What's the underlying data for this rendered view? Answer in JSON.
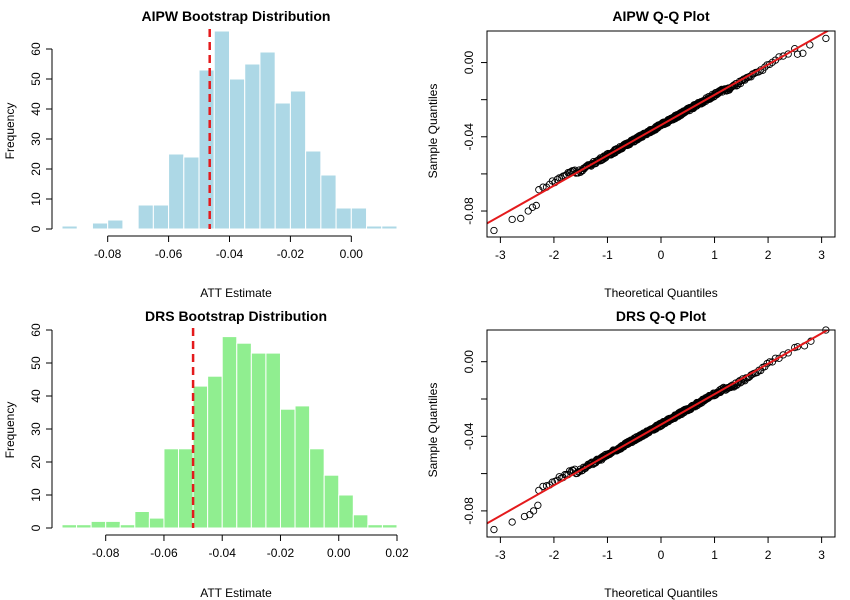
{
  "chart_data": [
    {
      "id": "aipw-hist",
      "type": "bar",
      "title": "AIPW Bootstrap Distribution",
      "xlabel": "ATT Estimate",
      "ylabel": "Frequency",
      "xlim": [
        -0.095,
        0.015
      ],
      "ylim": [
        0,
        66
      ],
      "xticks": [
        -0.08,
        -0.06,
        -0.04,
        -0.02,
        0.0
      ],
      "xtick_labels": [
        "-0.08",
        "-0.06",
        "-0.04",
        "-0.02",
        "0.00"
      ],
      "yticks": [
        0,
        10,
        20,
        30,
        40,
        50,
        60
      ],
      "ytick_labels": [
        "0",
        "10",
        "20",
        "30",
        "40",
        "50",
        "60"
      ],
      "bin_width": 0.005,
      "bin_starts": [
        -0.095,
        -0.09,
        -0.085,
        -0.08,
        -0.075,
        -0.07,
        -0.065,
        -0.06,
        -0.055,
        -0.05,
        -0.045,
        -0.04,
        -0.035,
        -0.03,
        -0.025,
        -0.02,
        -0.015,
        -0.01,
        -0.005,
        0.0,
        0.005,
        0.01
      ],
      "values": [
        1,
        0,
        2,
        3,
        0,
        8,
        8,
        25,
        24,
        53,
        66,
        50,
        55,
        59,
        42,
        46,
        26,
        18,
        7,
        7,
        1,
        1
      ],
      "bar_color": "#ADD8E6",
      "vline": -0.0465,
      "vline_color": "#E41A1C"
    },
    {
      "id": "aipw-qq",
      "type": "scatter",
      "title": "AIPW Q-Q Plot",
      "xlabel": "Theoretical Quantiles",
      "ylabel": "Sample Quantiles",
      "xlim": [
        -3.25,
        3.25
      ],
      "ylim": [
        -0.094,
        0.017
      ],
      "xticks": [
        -3,
        -2,
        -1,
        0,
        1,
        2,
        3
      ],
      "xtick_labels": [
        "-3",
        "-2",
        "-1",
        "0",
        "1",
        "2",
        "3"
      ],
      "yticks": [
        -0.08,
        -0.04,
        0.0
      ],
      "ytick_labels": [
        "-0.08",
        "-0.04",
        "0.00"
      ],
      "n": 400,
      "intercept": -0.0337,
      "slope": 0.0163,
      "tail_points": [
        {
          "x": -3.12,
          "y": -0.0905
        },
        {
          "x": -2.78,
          "y": -0.0845
        },
        {
          "x": -2.62,
          "y": -0.084
        },
        {
          "x": -2.48,
          "y": -0.08
        },
        {
          "x": -2.4,
          "y": -0.078
        },
        {
          "x": -2.33,
          "y": -0.077
        },
        {
          "x": 2.55,
          "y": 0.0045
        },
        {
          "x": 2.65,
          "y": 0.005
        },
        {
          "x": 2.78,
          "y": 0.0095
        },
        {
          "x": 3.08,
          "y": 0.013
        }
      ],
      "line_color": "#E41A1C"
    },
    {
      "id": "drs-hist",
      "type": "bar",
      "title": "DRS Bootstrap Distribution",
      "xlabel": "ATT Estimate",
      "ylabel": "Frequency",
      "xlim": [
        -0.095,
        0.02
      ],
      "ylim": [
        0,
        60
      ],
      "xticks": [
        -0.08,
        -0.06,
        -0.04,
        -0.02,
        0.0,
        0.02
      ],
      "xtick_labels": [
        "-0.08",
        "-0.06",
        "-0.04",
        "-0.02",
        "0.00",
        "0.02"
      ],
      "yticks": [
        0,
        10,
        20,
        30,
        40,
        50,
        60
      ],
      "ytick_labels": [
        "0",
        "10",
        "20",
        "30",
        "40",
        "50",
        "60"
      ],
      "bin_width": 0.005,
      "bin_starts": [
        -0.095,
        -0.09,
        -0.085,
        -0.08,
        -0.075,
        -0.07,
        -0.065,
        -0.06,
        -0.055,
        -0.05,
        -0.045,
        -0.04,
        -0.035,
        -0.03,
        -0.025,
        -0.02,
        -0.015,
        -0.01,
        -0.005,
        0.0,
        0.005,
        0.01,
        0.015
      ],
      "values": [
        1,
        1,
        2,
        2,
        1,
        5,
        3,
        24,
        24,
        43,
        46,
        58,
        56,
        53,
        53,
        36,
        37,
        24,
        16,
        10,
        4,
        1,
        1
      ],
      "bar_color": "#90EE90",
      "vline": -0.05,
      "vline_color": "#E41A1C"
    },
    {
      "id": "drs-qq",
      "type": "scatter",
      "title": "DRS Q-Q Plot",
      "xlabel": "Theoretical Quantiles",
      "ylabel": "Sample Quantiles",
      "xlim": [
        -3.25,
        3.25
      ],
      "ylim": [
        -0.094,
        0.017
      ],
      "xticks": [
        -3,
        -2,
        -1,
        0,
        1,
        2,
        3
      ],
      "xtick_labels": [
        "-3",
        "-2",
        "-1",
        "0",
        "1",
        "2",
        "3"
      ],
      "yticks": [
        -0.08,
        -0.04,
        0.0
      ],
      "ytick_labels": [
        "-0.08",
        "-0.04",
        "0.00"
      ],
      "n": 400,
      "intercept": -0.0337,
      "slope": 0.0163,
      "tail_points": [
        {
          "x": -3.12,
          "y": -0.09
        },
        {
          "x": -2.78,
          "y": -0.086
        },
        {
          "x": -2.55,
          "y": -0.083
        },
        {
          "x": -2.45,
          "y": -0.082
        },
        {
          "x": -2.38,
          "y": -0.08
        },
        {
          "x": -2.3,
          "y": -0.077
        },
        {
          "x": 2.55,
          "y": 0.008
        },
        {
          "x": 2.68,
          "y": 0.0085
        },
        {
          "x": 2.8,
          "y": 0.011
        },
        {
          "x": 3.08,
          "y": 0.017
        }
      ],
      "line_color": "#E41A1C"
    }
  ]
}
